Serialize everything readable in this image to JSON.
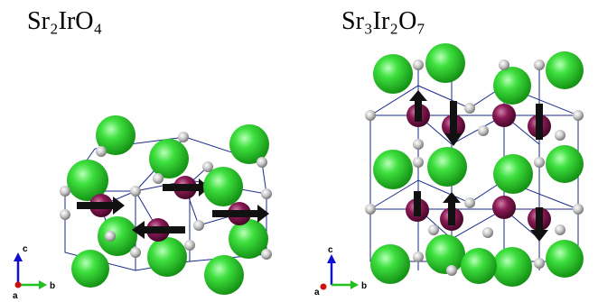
{
  "panels": [
    {
      "title": "Sr₂IrO₄",
      "axes": {
        "c": "c",
        "b": "b",
        "a": "a"
      }
    },
    {
      "title": "Sr₃Ir₂O₇",
      "axes": {
        "c": "c",
        "b": "b",
        "a": "a"
      }
    }
  ]
}
